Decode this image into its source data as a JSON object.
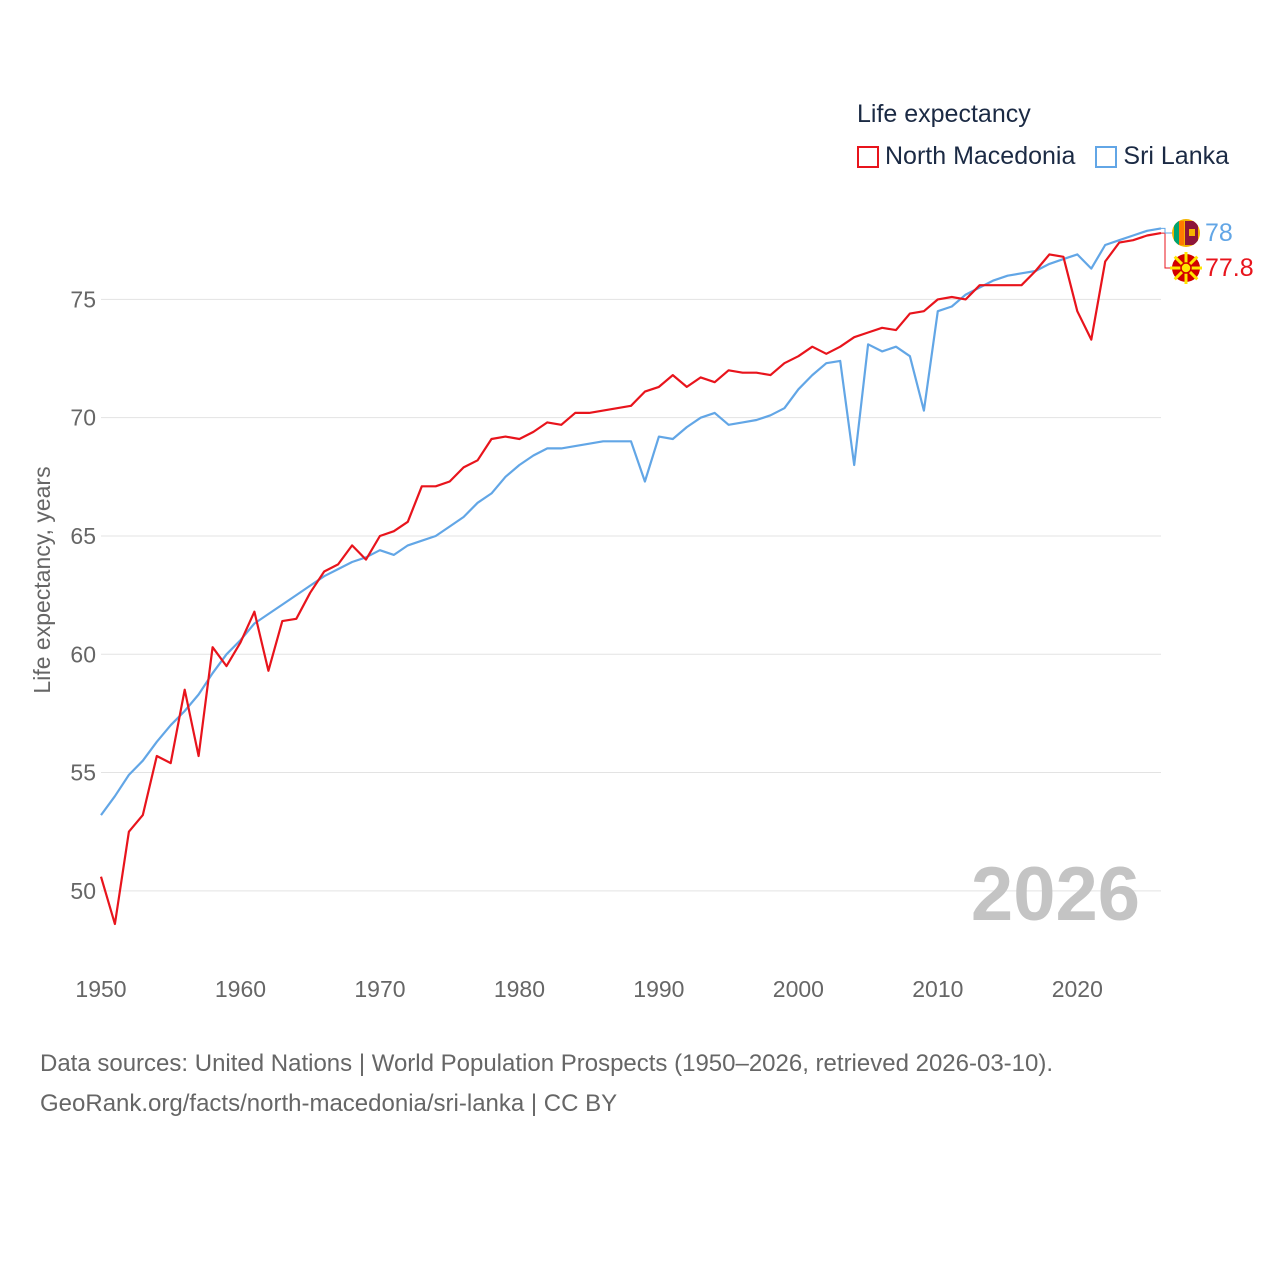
{
  "legend": {
    "title": "Life expectancy",
    "items": [
      {
        "label": "North Macedonia",
        "color": "#e8141c"
      },
      {
        "label": "Sri Lanka",
        "color": "#62a6e6"
      }
    ]
  },
  "year_stamp": "2026",
  "source": {
    "line1": "Data sources: United Nations | World Population Prospects (1950–2026, retrieved 2026-03-10).",
    "line2": "GeoRank.org/facts/north-macedonia/sri-lanka | CC BY"
  },
  "chart_data": {
    "type": "line",
    "title": "Life expectancy",
    "xlabel": "",
    "ylabel": "Life expectancy, years",
    "xlim": [
      1950,
      2026
    ],
    "ylim": [
      47.5,
      79.2
    ],
    "x_ticks": [
      1950,
      1960,
      1970,
      1980,
      1990,
      2000,
      2010,
      2020
    ],
    "y_ticks": [
      50,
      55,
      60,
      65,
      70,
      75
    ],
    "grid": true,
    "legend_position": "top-right",
    "x": [
      1950,
      1951,
      1952,
      1953,
      1954,
      1955,
      1956,
      1957,
      1958,
      1959,
      1960,
      1961,
      1962,
      1963,
      1964,
      1965,
      1966,
      1967,
      1968,
      1969,
      1970,
      1971,
      1972,
      1973,
      1974,
      1975,
      1976,
      1977,
      1978,
      1979,
      1980,
      1981,
      1982,
      1983,
      1984,
      1985,
      1986,
      1987,
      1988,
      1989,
      1990,
      1991,
      1992,
      1993,
      1994,
      1995,
      1996,
      1997,
      1998,
      1999,
      2000,
      2001,
      2002,
      2003,
      2004,
      2005,
      2006,
      2007,
      2008,
      2009,
      2010,
      2011,
      2012,
      2013,
      2014,
      2015,
      2016,
      2017,
      2018,
      2019,
      2020,
      2021,
      2022,
      2023,
      2024,
      2025,
      2026
    ],
    "series": [
      {
        "name": "North Macedonia",
        "color": "#e8141c",
        "end_label": "77.8",
        "flag": "north-macedonia-flag-icon",
        "values": [
          50.6,
          48.6,
          52.5,
          53.2,
          55.7,
          55.4,
          58.5,
          55.7,
          60.3,
          59.5,
          60.5,
          61.8,
          59.3,
          61.4,
          61.5,
          62.6,
          63.5,
          63.8,
          64.6,
          64.0,
          65.0,
          65.2,
          65.6,
          67.1,
          67.1,
          67.3,
          67.9,
          68.2,
          69.1,
          69.2,
          69.1,
          69.4,
          69.8,
          69.7,
          70.2,
          70.2,
          70.3,
          70.4,
          70.5,
          71.1,
          71.3,
          71.8,
          71.3,
          71.7,
          71.5,
          72.0,
          71.9,
          71.9,
          71.8,
          72.3,
          72.6,
          73.0,
          72.7,
          73.0,
          73.4,
          73.6,
          73.8,
          73.7,
          74.4,
          74.5,
          75.0,
          75.1,
          75.0,
          75.6,
          75.6,
          75.6,
          75.6,
          76.2,
          76.9,
          76.8,
          74.5,
          73.3,
          76.6,
          77.4,
          77.5,
          77.7,
          77.8
        ]
      },
      {
        "name": "Sri Lanka",
        "color": "#62a6e6",
        "end_label": "78",
        "flag": "sri-lanka-flag-icon",
        "values": [
          53.2,
          54.0,
          54.9,
          55.5,
          56.3,
          57.0,
          57.6,
          58.3,
          59.2,
          60.0,
          60.6,
          61.3,
          61.7,
          62.1,
          62.5,
          62.9,
          63.3,
          63.6,
          63.9,
          64.1,
          64.4,
          64.2,
          64.6,
          64.8,
          65.0,
          65.4,
          65.8,
          66.4,
          66.8,
          67.5,
          68.0,
          68.4,
          68.7,
          68.7,
          68.8,
          68.9,
          69.0,
          69.0,
          69.0,
          67.3,
          69.2,
          69.1,
          69.6,
          70.0,
          70.2,
          69.7,
          69.8,
          69.9,
          70.1,
          70.4,
          71.2,
          71.8,
          72.3,
          72.4,
          68.0,
          73.1,
          72.8,
          73.0,
          72.6,
          70.3,
          74.5,
          74.7,
          75.2,
          75.5,
          75.8,
          76.0,
          76.1,
          76.2,
          76.5,
          76.7,
          76.9,
          76.3,
          77.3,
          77.5,
          77.7,
          77.9,
          78.0
        ]
      }
    ]
  }
}
